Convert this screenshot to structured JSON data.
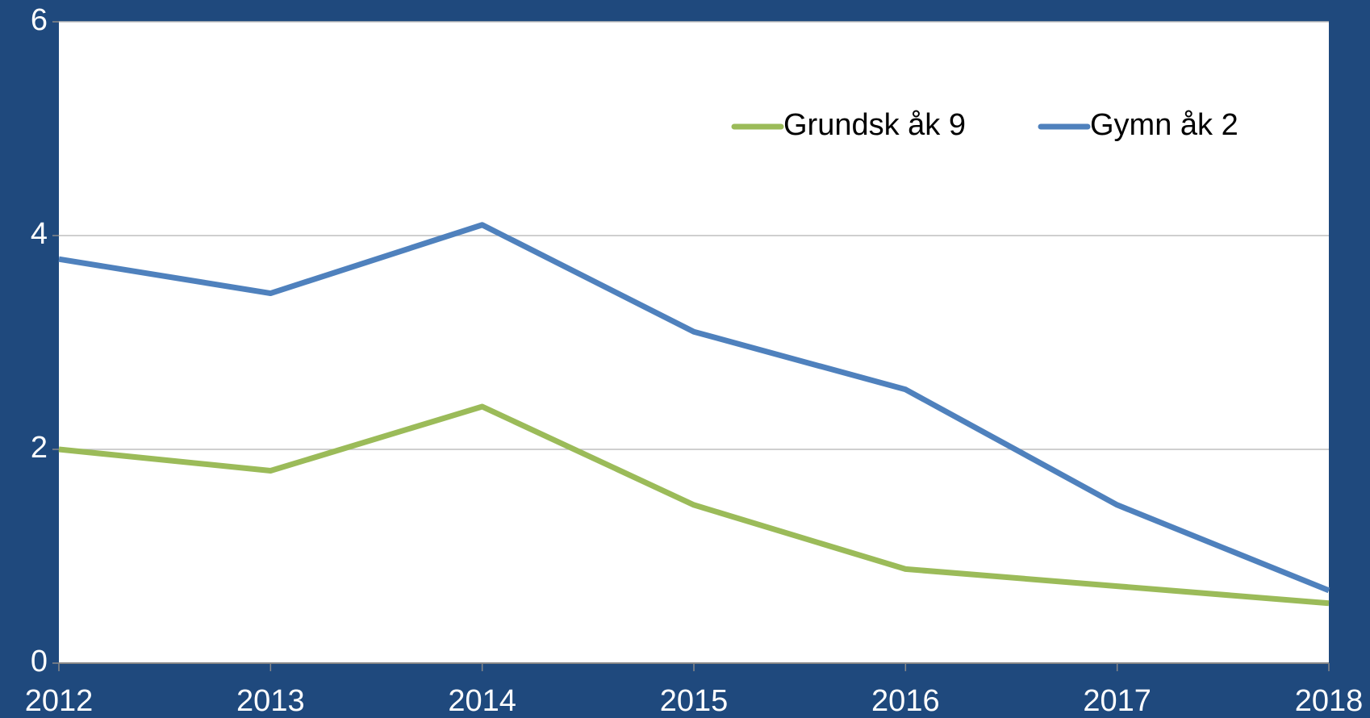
{
  "chart_data": {
    "type": "line",
    "categories": [
      "2012",
      "2013",
      "2014",
      "2015",
      "2016",
      "2017",
      "2018"
    ],
    "series": [
      {
        "name": "Grundsk åk 9",
        "color": "#9bbb59",
        "values": [
          2.0,
          1.8,
          2.4,
          1.48,
          0.88,
          0.72,
          0.56
        ]
      },
      {
        "name": "Gymn åk 2",
        "color": "#4f81bd",
        "values": [
          3.78,
          3.46,
          4.1,
          3.1,
          2.56,
          1.48,
          0.68
        ]
      }
    ],
    "ylim": [
      0,
      6
    ],
    "yticks": [
      0,
      2,
      4,
      6
    ],
    "grid": true,
    "legend": "top-right"
  }
}
